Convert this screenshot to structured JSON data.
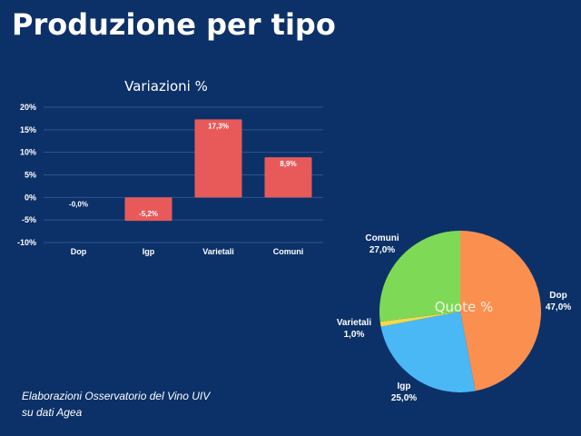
{
  "page": {
    "title": "Produzione per tipo",
    "source_note": "Elaborazioni Osservatorio del Vino UIV su dati Agea"
  },
  "colors": {
    "background": "#0c3168",
    "bar": "#e85a5a",
    "gridline": "#2e5590",
    "text": "#ffffff",
    "pie_quote_label": "#ffffff"
  },
  "chart_data": [
    {
      "type": "bar",
      "title": "Variazioni %",
      "categories": [
        "Dop",
        "Igp",
        "Varietali",
        "Comuni"
      ],
      "values": [
        -0.0,
        -5.2,
        17.3,
        8.9
      ],
      "data_labels": [
        "-0,0%",
        "-5,2%",
        "17,3%",
        "8,9%"
      ],
      "y_ticks": [
        20,
        15,
        10,
        5,
        0,
        -5,
        -10
      ],
      "y_tick_labels": [
        "20%",
        "15%",
        "10%",
        "5%",
        "0%",
        "-5%",
        "-10%"
      ],
      "ylim": [
        -10,
        20
      ],
      "grid": true,
      "xlabel": "",
      "ylabel": ""
    },
    {
      "type": "pie",
      "title": "Quote %",
      "slices": [
        {
          "name": "Dop",
          "value": 47.0,
          "label": "47,0%",
          "color": "#fb8f4f"
        },
        {
          "name": "Igp",
          "value": 25.0,
          "label": "25,0%",
          "color": "#4ab8f5"
        },
        {
          "name": "Varietali",
          "value": 1.0,
          "label": "1,0%",
          "color": "#f2da4a"
        },
        {
          "name": "Comuni",
          "value": 27.0,
          "label": "27,0%",
          "color": "#7ed957"
        }
      ]
    }
  ]
}
